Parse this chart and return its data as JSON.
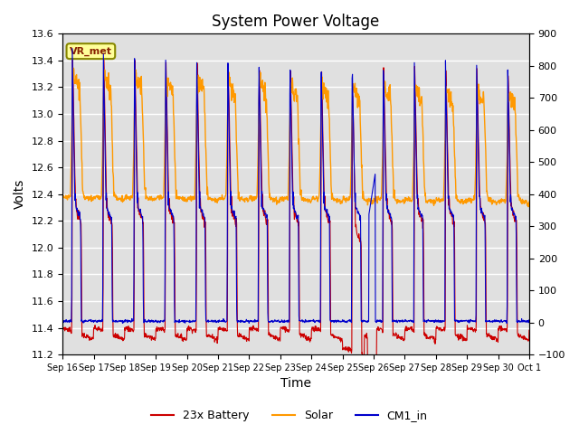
{
  "title": "System Power Voltage",
  "xlabel": "Time",
  "ylabel_left": "Volts",
  "ylim_left": [
    11.2,
    13.6
  ],
  "ylim_right": [
    -100,
    900
  ],
  "yticks_left": [
    11.2,
    11.4,
    11.6,
    11.8,
    12.0,
    12.2,
    12.4,
    12.6,
    12.8,
    13.0,
    13.2,
    13.4,
    13.6
  ],
  "yticks_right": [
    -100,
    0,
    100,
    200,
    300,
    400,
    500,
    600,
    700,
    800,
    900
  ],
  "xtick_labels": [
    "Sep 16",
    "Sep 17",
    "Sep 18",
    "Sep 19",
    "Sep 20",
    "Sep 21",
    "Sep 22",
    "Sep 23",
    "Sep 24",
    "Sep 25",
    "Sep 26",
    "Sep 27",
    "Sep 28",
    "Sep 29",
    "Sep 30",
    "Oct 1"
  ],
  "legend_labels": [
    "23x Battery",
    "Solar",
    "CM1_in"
  ],
  "legend_colors": [
    "#cc0000",
    "#ff9900",
    "#0000cc"
  ],
  "annotation_text": "VR_met",
  "annotation_color": "#882200",
  "annotation_bg": "#ffff99",
  "annotation_border": "#888800",
  "plot_bg": "#e0e0e0",
  "grid_color": "#ffffff",
  "n_days": 15,
  "battery_night_low": 11.38,
  "battery_day_high": 13.48,
  "battery_day_base": 12.35,
  "cm1_night_low": 11.45,
  "cm1_day_high": 13.5,
  "solar_night": 12.38,
  "solar_day_peak": 13.3
}
